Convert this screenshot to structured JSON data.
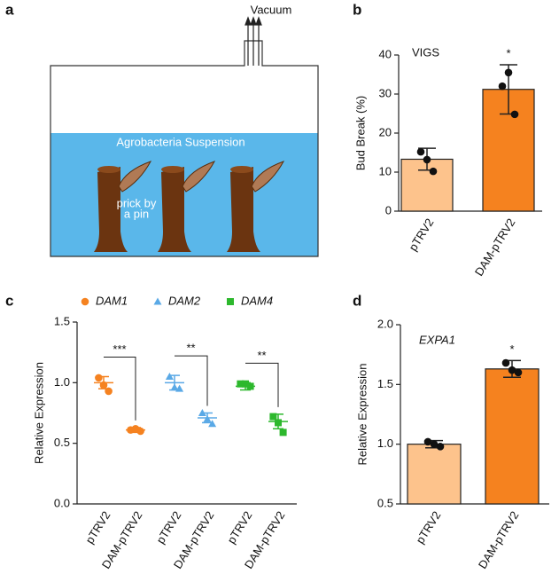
{
  "panel_labels": [
    "a",
    "b",
    "c",
    "d"
  ],
  "diagram": {
    "vacuum": "Vacuum",
    "suspension": "Agrobacteria Suspension",
    "prick": [
      "prick by",
      "a pin"
    ]
  },
  "chart_data": [
    {
      "type": "bar",
      "title": "VIGS",
      "ylabel": "Bud Break (%)",
      "categories": [
        "pTRV2",
        "DAM-pTRV2"
      ],
      "values": [
        13.3,
        31.2
      ],
      "errors": [
        2.8,
        6.3
      ],
      "points": [
        [
          15.2,
          10.2,
          13.2
        ],
        [
          32,
          24.8,
          35.5
        ]
      ],
      "colors": [
        "#fdc38c",
        "#f5821f"
      ],
      "significance": [
        null,
        "*"
      ],
      "ylim": [
        0,
        40
      ],
      "yticks": [
        0,
        10,
        20,
        30,
        40
      ]
    },
    {
      "type": "scatter",
      "ylabel": "Relative Expression",
      "categories": [
        "pTRV2",
        "DAM-pTRV2",
        "pTRV2",
        "DAM-pTRV2",
        "pTRV2",
        "DAM-pTRV2"
      ],
      "series": [
        {
          "name": "DAM1",
          "color": "#f58220",
          "marker": "circle",
          "values": [
            1.0,
            0.61,
            null,
            null,
            null,
            null
          ],
          "errors": [
            0.05,
            0.02,
            null,
            null,
            null,
            null
          ],
          "points": [
            [
              1.04,
              0.93,
              0.98
            ],
            [
              0.61,
              0.6,
              0.62
            ],
            null,
            null,
            null,
            null
          ]
        },
        {
          "name": "DAM2",
          "color": "#5aa9e6",
          "marker": "triangle",
          "values": [
            null,
            null,
            1.0,
            0.71,
            null,
            null
          ],
          "errors": [
            null,
            null,
            0.06,
            0.04,
            null,
            null
          ],
          "points": [
            null,
            null,
            [
              1.05,
              0.95,
              0.96
            ],
            [
              0.75,
              0.66,
              0.7
            ],
            null,
            null
          ]
        },
        {
          "name": "DAM4",
          "color": "#2db82d",
          "marker": "square",
          "values": [
            null,
            null,
            null,
            null,
            0.97,
            0.68
          ],
          "errors": [
            null,
            null,
            null,
            null,
            0.03,
            0.06
          ],
          "points": [
            null,
            null,
            null,
            null,
            [
              0.99,
              0.97,
              0.99
            ],
            [
              0.72,
              0.59,
              0.67
            ]
          ]
        }
      ],
      "significance": [
        "***",
        "**",
        "**"
      ],
      "ylim": [
        0,
        1.5
      ],
      "yticks": [
        {
          "value": 0,
          "label": "0.0"
        },
        0.5,
        {
          "value": 1,
          "label": "1.0"
        },
        1.5
      ]
    },
    {
      "type": "bar",
      "title": "EXPA1",
      "ylabel": "Relative Expression",
      "categories": [
        "pTRV2",
        "DAM-pTRV2"
      ],
      "values": [
        1.0,
        1.63
      ],
      "errors": [
        0.03,
        0.07
      ],
      "points": [
        [
          1.02,
          0.98,
          1.0
        ],
        [
          1.68,
          1.6,
          1.62
        ]
      ],
      "colors": [
        "#fdc38c",
        "#f5821f"
      ],
      "significance": [
        null,
        "*"
      ],
      "ylim": [
        0.5,
        2.0
      ],
      "yticks": [
        0.5,
        {
          "value": 1,
          "label": "1.0"
        },
        1.5,
        {
          "value": 2,
          "label": "2.0"
        }
      ]
    }
  ]
}
